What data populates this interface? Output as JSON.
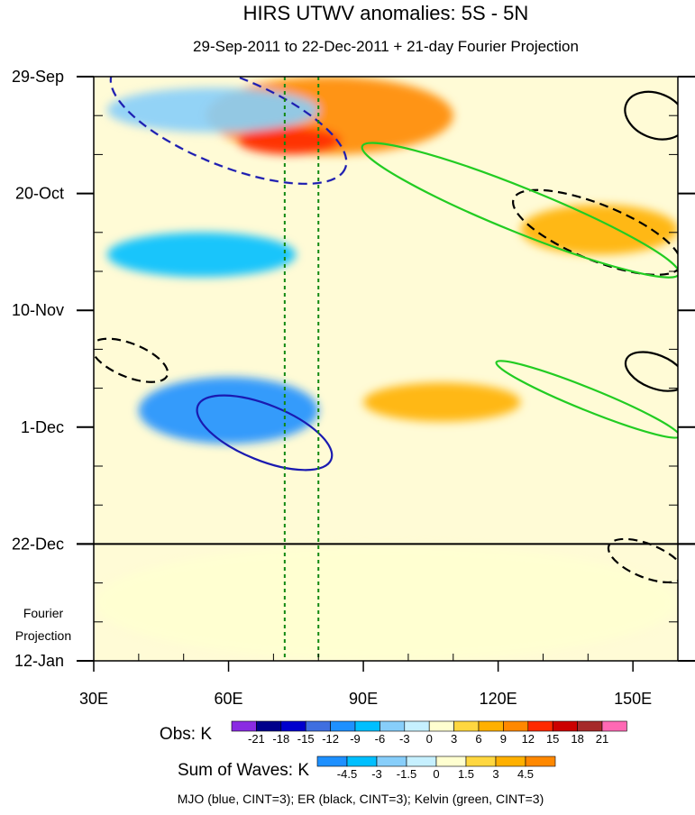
{
  "chart_data": {
    "type": "heatmap",
    "title": "HIRS UTWV anomalies: 5S - 5N",
    "subtitle": "29-Sep-2011 to 22-Dec-2011 + 21-day Fourier Projection",
    "x_axis": {
      "range_deg_east": [
        30,
        160
      ],
      "ticks": [
        {
          "value": 30,
          "label": "30E"
        },
        {
          "value": 60,
          "label": "60E"
        },
        {
          "value": 90,
          "label": "90E"
        },
        {
          "value": 120,
          "label": "120E"
        },
        {
          "value": 150,
          "label": "150E"
        }
      ]
    },
    "y_axis": {
      "range_days_from_29_Sep": [
        0,
        105
      ],
      "ticks": [
        {
          "day": 0,
          "label": "29-Sep"
        },
        {
          "day": 21,
          "label": "20-Oct"
        },
        {
          "day": 42,
          "label": "10-Nov"
        },
        {
          "day": 63,
          "label": "1-Dec"
        },
        {
          "day": 84,
          "label": "22-Dec"
        },
        {
          "day": 105,
          "label": "12-Jan"
        }
      ],
      "projection_label": [
        "Fourier",
        "Projection"
      ]
    },
    "separator_day": 84,
    "reference_lines_lon": [
      72.5,
      80
    ],
    "anomaly_regions": [
      {
        "lon": [
          55,
          110
        ],
        "day": [
          0,
          14
        ],
        "value": 9
      },
      {
        "lon": [
          62,
          85
        ],
        "day": [
          9,
          14
        ],
        "value": 12
      },
      {
        "lon": [
          33,
          80
        ],
        "day": [
          2,
          10
        ],
        "value": -6
      },
      {
        "lon": [
          33,
          75
        ],
        "day": [
          28,
          36
        ],
        "value": -9
      },
      {
        "lon": [
          40,
          80
        ],
        "day": [
          54,
          66
        ],
        "value": -12
      },
      {
        "lon": [
          125,
          160
        ],
        "day": [
          23,
          32
        ],
        "value": 6
      },
      {
        "lon": [
          90,
          125
        ],
        "day": [
          55,
          62
        ],
        "value": 6
      },
      {
        "lon": [
          30,
          160
        ],
        "day": [
          84,
          105
        ],
        "value": 1.5
      }
    ],
    "wave_contours": [
      {
        "wave": "MJO",
        "color": "#1a1ab0",
        "style": "dashed",
        "center": [
          60,
          8
        ],
        "extent": [
          28,
          8
        ]
      },
      {
        "wave": "MJO",
        "color": "#1a1ab0",
        "style": "solid",
        "center": [
          68,
          64
        ],
        "extent": [
          16,
          5
        ]
      },
      {
        "wave": "ER",
        "color": "#000000",
        "style": "solid",
        "center": [
          155,
          7
        ],
        "extent": [
          7,
          4
        ]
      },
      {
        "wave": "ER",
        "color": "#000000",
        "style": "dashed",
        "center": [
          142,
          28
        ],
        "extent": [
          20,
          5
        ]
      },
      {
        "wave": "ER",
        "color": "#000000",
        "style": "dashed",
        "center": [
          38,
          51
        ],
        "extent": [
          9,
          3
        ]
      },
      {
        "wave": "ER",
        "color": "#000000",
        "style": "solid",
        "center": [
          155,
          53
        ],
        "extent": [
          7,
          3
        ]
      },
      {
        "wave": "ER",
        "color": "#000000",
        "style": "dashed",
        "center": [
          153,
          87
        ],
        "extent": [
          9,
          3
        ]
      },
      {
        "wave": "Kelvin",
        "color": "#22cc22",
        "style": "solid",
        "center": [
          125,
          24
        ],
        "extent": [
          38,
          4
        ]
      },
      {
        "wave": "Kelvin",
        "color": "#22cc22",
        "style": "solid",
        "center": [
          140,
          58
        ],
        "extent": [
          22,
          2
        ]
      }
    ],
    "colorbars": [
      {
        "title": "Obs: K",
        "labels": [
          "-21",
          "-18",
          "-15",
          "-12",
          "-9",
          "-6",
          "-3",
          "0",
          "3",
          "6",
          "9",
          "12",
          "15",
          "18",
          "21"
        ],
        "colors": [
          "#8a2be2",
          "#00008b",
          "#0000cd",
          "#3f6fe0",
          "#1e90ff",
          "#00bfff",
          "#87cefa",
          "#c6f0ff",
          "#ffffd0",
          "#ffd740",
          "#ffb000",
          "#ff8800",
          "#ff2a00",
          "#cc0000",
          "#a52a2a",
          "#ff69b4"
        ]
      },
      {
        "title": "Sum of Waves: K",
        "labels": [
          "-4.5",
          "-3",
          "-1.5",
          "0",
          "1.5",
          "3",
          "4.5"
        ],
        "colors": [
          "#1e90ff",
          "#00bfff",
          "#87cefa",
          "#c6f0ff",
          "#ffffd0",
          "#ffd740",
          "#ffb000",
          "#ff8800"
        ]
      }
    ],
    "footer": "MJO (blue, CINT=3); ER (black, CINT=3); Kelvin (green, CINT=3)"
  }
}
